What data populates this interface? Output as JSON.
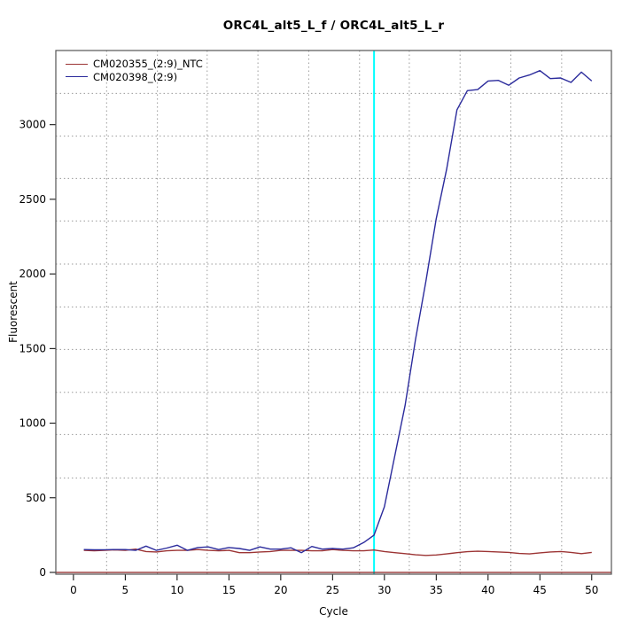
{
  "chart_data": {
    "type": "line",
    "title": "ORC4L_alt5_L_f / ORC4L_alt5_L_r",
    "xlabel": "Cycle",
    "ylabel": "Fluorescent",
    "xlim": [
      -1.7,
      51.9
    ],
    "ylim": [
      -12,
      3497
    ],
    "x_ticks": [
      0,
      5,
      10,
      15,
      20,
      25,
      30,
      35,
      40,
      45,
      50
    ],
    "y_ticks": [
      0,
      500,
      1000,
      1500,
      2000,
      2500,
      3000
    ],
    "grid": {
      "style": "dotted",
      "color": "#9a9a9a",
      "x_lines": [
        3.2,
        8.1,
        12.9,
        17.8,
        22.7,
        27.6,
        32.4,
        37.3,
        42.2,
        47.1
      ],
      "y_lines": [
        633,
        924,
        1207,
        1494,
        1779,
        2066,
        2355,
        2640,
        2923,
        3210
      ]
    },
    "threshold_line": {
      "axis": "x",
      "value": 29,
      "color": "#00ffff"
    },
    "zero_line": {
      "axis": "y",
      "value": 0,
      "color": "#8b1f1f"
    },
    "legend_position": "top-left",
    "border_color": "#555555",
    "x": [
      1,
      2,
      3,
      4,
      5,
      6,
      7,
      8,
      9,
      10,
      11,
      12,
      13,
      14,
      15,
      16,
      17,
      18,
      19,
      20,
      21,
      22,
      23,
      24,
      25,
      26,
      27,
      28,
      29,
      30,
      31,
      32,
      33,
      34,
      35,
      36,
      37,
      38,
      39,
      40,
      41,
      42,
      43,
      44,
      45,
      46,
      47,
      48,
      49,
      50
    ],
    "series": [
      {
        "name": "CM020355_(2:9)_NTC",
        "color": "#9c3434",
        "values": [
          148,
          145,
          148,
          151,
          148,
          156,
          140,
          137,
          145,
          148,
          148,
          153,
          148,
          145,
          148,
          132,
          132,
          137,
          140,
          148,
          148,
          148,
          145,
          145,
          153,
          148,
          145,
          145,
          150,
          140,
          132,
          126,
          118,
          114,
          117,
          124,
          132,
          139,
          142,
          140,
          137,
          134,
          127,
          124,
          131,
          137,
          140,
          134,
          126,
          134
        ]
      },
      {
        "name": "CM020398_(2:9)",
        "color": "#2b2b9c",
        "values": [
          153,
          152,
          152,
          153,
          153,
          148,
          176,
          148,
          163,
          182,
          148,
          167,
          171,
          153,
          167,
          160,
          148,
          171,
          156,
          156,
          165,
          132,
          174,
          156,
          160,
          156,
          165,
          200,
          250,
          440,
          780,
          1120,
          1560,
          1950,
          2370,
          2700,
          3100,
          3228,
          3235,
          3293,
          3297,
          3264,
          3313,
          3333,
          3362,
          3309,
          3313,
          3283,
          3352,
          3293
        ]
      }
    ]
  }
}
